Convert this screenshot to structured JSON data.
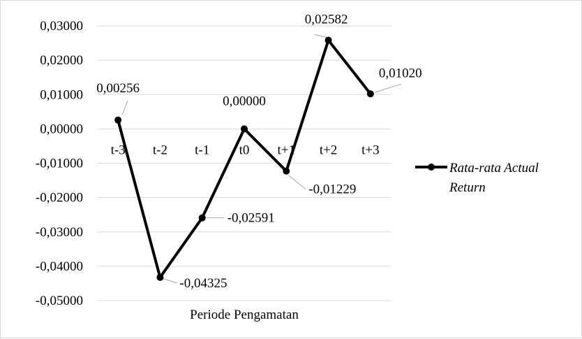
{
  "chart_data": {
    "type": "line",
    "categories": [
      "t-3",
      "t-2",
      "t-1",
      "t0",
      "t+1",
      "t+2",
      "t+3"
    ],
    "series": [
      {
        "name": "Rata-rata Actual Return",
        "values": [
          0.00256,
          -0.04325,
          -0.02591,
          0.0,
          -0.01229,
          0.02582,
          0.0102
        ],
        "labels": [
          "0,00256",
          "-0,04325",
          "-0,02591",
          "0,00000",
          "-0,01229",
          "0,02582",
          "0,01020"
        ],
        "color": "#000000"
      }
    ],
    "title": "",
    "xlabel": "Periode Pengamatan",
    "ylabel": "",
    "ylim": [
      -0.05,
      0.03
    ],
    "yticks": [
      0.03,
      0.02,
      0.01,
      0.0,
      -0.01,
      -0.02,
      -0.03,
      -0.04,
      -0.05
    ],
    "ytick_labels": [
      "0,03000",
      "0,02000",
      "0,01000",
      "0,00000",
      "-0,01000",
      "-0,02000",
      "-0,03000",
      "-0,04000",
      "-0,05000"
    ],
    "grid": true,
    "legend": {
      "position": "right",
      "lines": [
        "Rata-rata Actual",
        "Return"
      ]
    }
  }
}
